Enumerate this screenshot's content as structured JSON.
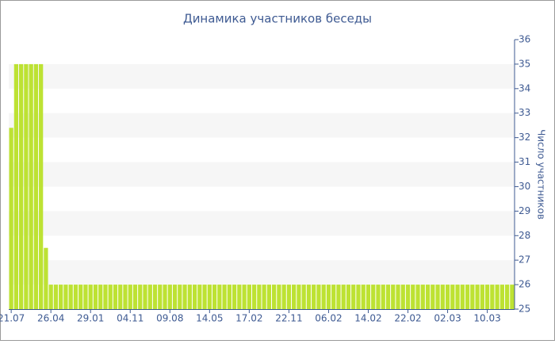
{
  "chart_data": {
    "type": "bar",
    "title": "Динамика участников беседы",
    "y_label": "Число участников",
    "categories": [
      "21.07",
      null,
      null,
      null,
      null,
      null,
      null,
      null,
      "26.04",
      null,
      null,
      null,
      null,
      null,
      null,
      null,
      "29.01",
      null,
      null,
      null,
      null,
      null,
      null,
      null,
      "04.11",
      null,
      null,
      null,
      null,
      null,
      null,
      null,
      "09.08",
      null,
      null,
      null,
      null,
      null,
      null,
      null,
      "14.05",
      null,
      null,
      null,
      null,
      null,
      null,
      null,
      "17.02",
      null,
      null,
      null,
      null,
      null,
      null,
      null,
      "22.11",
      null,
      null,
      null,
      null,
      null,
      null,
      null,
      "06.02",
      null,
      null,
      null,
      null,
      null,
      null,
      null,
      "14.02",
      null,
      null,
      null,
      null,
      null,
      null,
      null,
      "22.02",
      null,
      null,
      null,
      null,
      null,
      null,
      null,
      "02.03",
      null,
      null,
      null,
      null,
      null,
      null,
      null,
      "10.03",
      null,
      null,
      null,
      null,
      null
    ],
    "values": [
      32.4,
      35,
      35,
      35,
      35,
      35,
      35,
      27.5,
      26,
      26,
      26,
      26,
      26,
      26,
      26,
      26,
      26,
      26,
      26,
      26,
      26,
      26,
      26,
      26,
      26,
      26,
      26,
      26,
      26,
      26,
      26,
      26,
      26,
      26,
      26,
      26,
      26,
      26,
      26,
      26,
      26,
      26,
      26,
      26,
      26,
      26,
      26,
      26,
      26,
      26,
      26,
      26,
      26,
      26,
      26,
      26,
      26,
      26,
      26,
      26,
      26,
      26,
      26,
      26,
      26,
      26,
      26,
      26,
      26,
      26,
      26,
      26,
      26,
      26,
      26,
      26,
      26,
      26,
      26,
      26,
      26,
      26,
      26,
      26,
      26,
      26,
      26,
      26,
      26,
      26,
      26,
      26,
      26,
      26,
      26,
      26,
      26,
      26,
      26,
      26,
      26,
      26
    ],
    "color": "#bde233",
    "ylim": [
      25,
      36
    ],
    "yticks": [
      25,
      26,
      27,
      28,
      29,
      30,
      31,
      32,
      33,
      34,
      35,
      36
    ],
    "grid": "bands",
    "y_axis_side": "right"
  }
}
